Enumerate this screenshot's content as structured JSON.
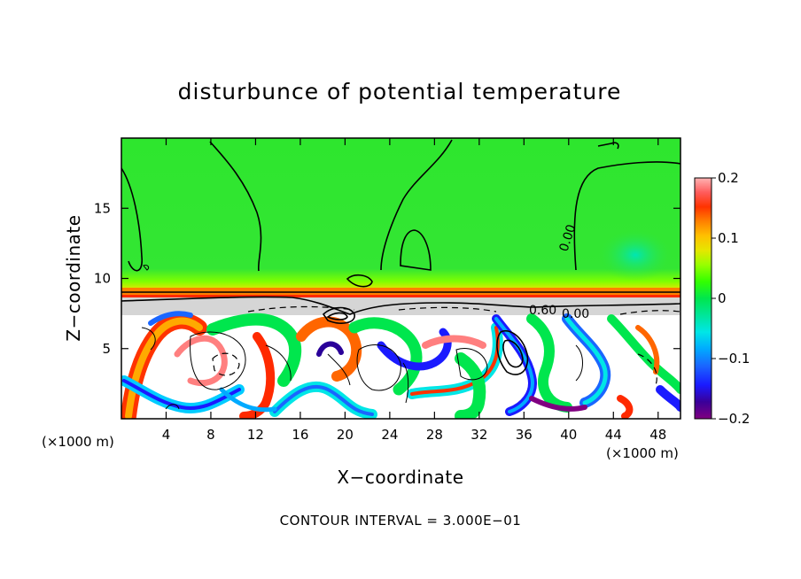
{
  "chart_data": {
    "type": "heatmap",
    "title": "disturbunce of potential temperature",
    "xlabel": "X−coordinate",
    "ylabel": "Z−coordinate",
    "x_unit_left": "(×1000 m)",
    "x_unit_right": "(×1000 m)",
    "xlim": [
      0,
      50
    ],
    "ylim": [
      0,
      20
    ],
    "x_ticks": [
      4,
      8,
      12,
      16,
      20,
      24,
      28,
      32,
      36,
      40,
      44,
      48
    ],
    "y_ticks": [
      5,
      10,
      15
    ],
    "colorbar": {
      "min": -0.2,
      "max": 0.2,
      "tick_labels": [
        "0.2",
        "0.1",
        "0",
        "−0.1",
        "−0.2"
      ],
      "tick_values": [
        0.2,
        0.1,
        0,
        -0.1,
        -0.2
      ],
      "colors": [
        "#800080",
        "#2a0099",
        "#1a33ff",
        "#00a8ff",
        "#00e6e6",
        "#00e68a",
        "#00ff00",
        "#7fff00",
        "#e6e600",
        "#ffaa00",
        "#ff6600",
        "#ff0000",
        "#ff7f7f",
        "#ffc8c8"
      ]
    },
    "contour_labels": [
      "0.00",
      "0.60",
      "0.00"
    ],
    "contour_interval": "CONTOUR INTERVAL = 3.000E−01"
  },
  "colors": {
    "background_upper": "#33e633",
    "inversion_band": "#ff6a00",
    "lower_background": "#ffffff"
  }
}
